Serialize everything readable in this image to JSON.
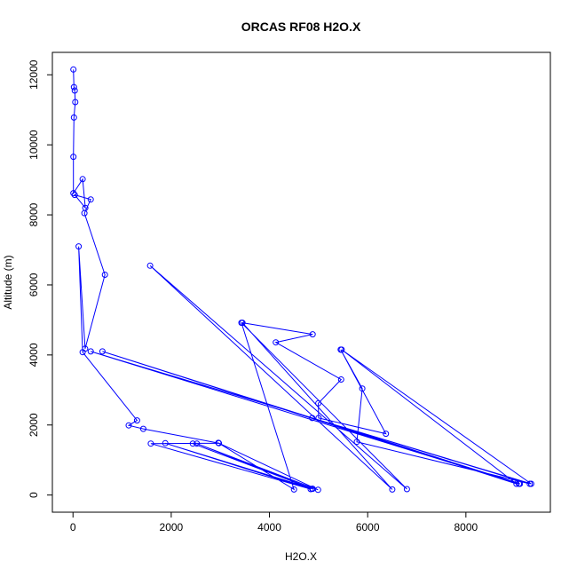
{
  "chart_data": {
    "type": "line",
    "title": "ORCAS RF08 H2O.X",
    "xlabel": "H2O.X",
    "ylabel": "Altitude (m)",
    "xlim": [
      -420,
      9720
    ],
    "ylim": [
      -490,
      12640
    ],
    "xticks": [
      0,
      2000,
      4000,
      6000,
      8000
    ],
    "yticks": [
      0,
      2000,
      4000,
      6000,
      8000,
      10000,
      12000
    ],
    "grid": false,
    "legend": "none",
    "color": "#0000ff",
    "series": [
      {
        "x": [
          9,
          20,
          35,
          47,
          20,
          9,
          9,
          196,
          250,
          36,
          360,
          232,
          650,
          247,
          115,
          196,
          1305,
          1135,
          1430,
          2970,
          1585,
          4840,
          1880,
          4880,
          2440,
          4870,
          2520,
          4990,
          2960,
          4500,
          3430,
          6800,
          1570,
          6500,
          3450,
          4880,
          4130,
          5460,
          4995,
          5000,
          6370,
          5450,
          5890,
          5780,
          9300,
          4870,
          9080,
          360,
          9330,
          5470,
          9030,
          600,
          9100
        ],
        "y": [
          12150,
          11650,
          11550,
          11220,
          10780,
          9660,
          8620,
          9020,
          8200,
          8570,
          8440,
          8050,
          6290,
          4180,
          7100,
          4080,
          2130,
          1990,
          1890,
          1480,
          1470,
          170,
          1480,
          180,
          1470,
          180,
          1470,
          150,
          1490,
          160,
          4920,
          170,
          6550,
          160,
          4920,
          4590,
          4360,
          3300,
          2620,
          2200,
          1750,
          4150,
          3040,
          1520,
          320,
          2200,
          320,
          4100,
          320,
          4150,
          320,
          4100,
          320
        ]
      }
    ]
  }
}
